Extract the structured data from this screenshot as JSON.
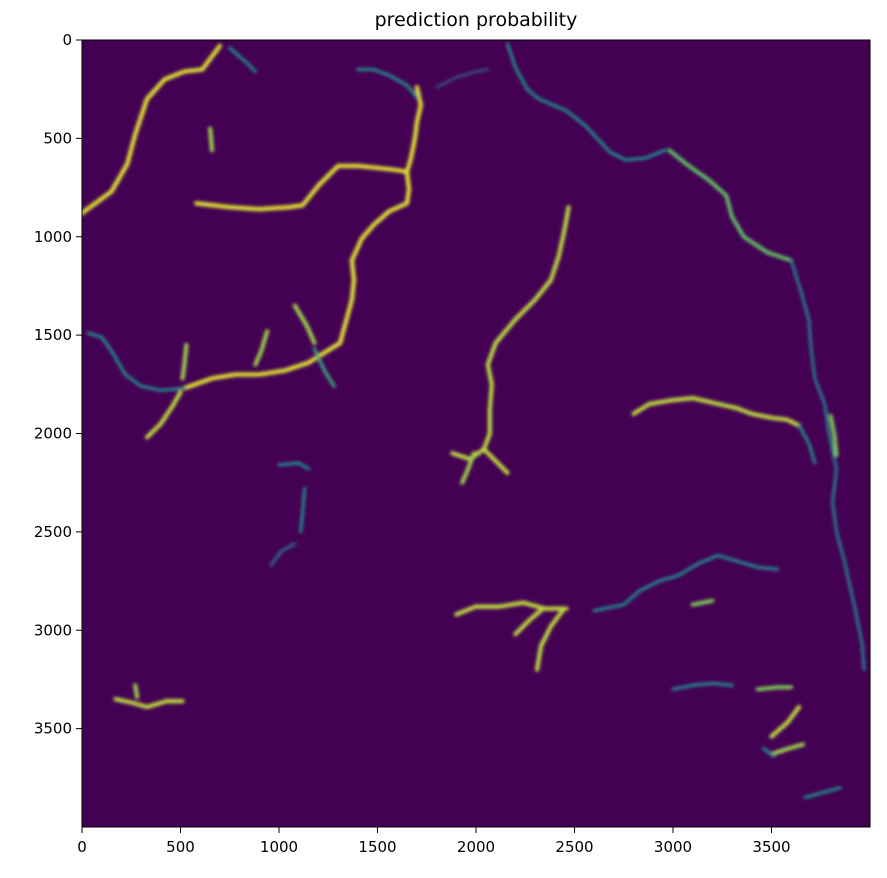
{
  "chart_data": {
    "type": "heatmap",
    "title": "prediction probability",
    "colormap": "viridis",
    "background_color": "#440154",
    "high_color": "#fde725",
    "mid_color": "#21918c",
    "xlim": [
      0,
      4000
    ],
    "ylim": [
      4000,
      0
    ],
    "x_ticks": [
      0,
      500,
      1000,
      1500,
      2000,
      2500,
      3000,
      3500
    ],
    "y_ticks": [
      0,
      500,
      1000,
      1500,
      2000,
      2500,
      3000,
      3500
    ],
    "xlabel": "",
    "ylabel": "",
    "grid": false,
    "features": [
      {
        "id": "r1",
        "prob": 0.95,
        "pts": [
          [
            0,
            880
          ],
          [
            150,
            770
          ],
          [
            230,
            630
          ],
          [
            270,
            480
          ],
          [
            330,
            300
          ],
          [
            420,
            200
          ],
          [
            520,
            160
          ],
          [
            610,
            150
          ],
          [
            700,
            30
          ]
        ]
      },
      {
        "id": "r2",
        "prob": 0.95,
        "pts": [
          [
            1650,
            670
          ],
          [
            1590,
            660
          ],
          [
            1500,
            650
          ],
          [
            1400,
            640
          ],
          [
            1300,
            640
          ],
          [
            1200,
            740
          ],
          [
            1120,
            840
          ],
          [
            1050,
            850
          ],
          [
            900,
            860
          ],
          [
            750,
            850
          ],
          [
            580,
            830
          ]
        ]
      },
      {
        "id": "r3",
        "prob": 0.95,
        "pts": [
          [
            1650,
            670
          ],
          [
            1670,
            600
          ],
          [
            1690,
            500
          ],
          [
            1700,
            420
          ],
          [
            1720,
            330
          ],
          [
            1700,
            240
          ]
        ]
      },
      {
        "id": "r4",
        "prob": 0.95,
        "pts": [
          [
            1650,
            670
          ],
          [
            1660,
            760
          ],
          [
            1650,
            830
          ],
          [
            1560,
            870
          ],
          [
            1480,
            940
          ],
          [
            1420,
            1010
          ],
          [
            1370,
            1120
          ],
          [
            1380,
            1220
          ],
          [
            1370,
            1320
          ],
          [
            1340,
            1430
          ],
          [
            1310,
            1540
          ],
          [
            1230,
            1590
          ],
          [
            1150,
            1640
          ],
          [
            1030,
            1680
          ],
          [
            900,
            1700
          ],
          [
            780,
            1700
          ],
          [
            660,
            1720
          ],
          [
            520,
            1770
          ]
        ]
      },
      {
        "id": "r5",
        "prob": 0.5,
        "pts": [
          [
            520,
            1770
          ],
          [
            400,
            1780
          ],
          [
            300,
            1760
          ],
          [
            220,
            1700
          ],
          [
            150,
            1580
          ],
          [
            100,
            1510
          ],
          [
            30,
            1490
          ]
        ]
      },
      {
        "id": "r6",
        "prob": 0.9,
        "pts": [
          [
            500,
            1790
          ],
          [
            460,
            1860
          ],
          [
            400,
            1950
          ],
          [
            330,
            2020
          ]
        ]
      },
      {
        "id": "r7",
        "prob": 0.85,
        "pts": [
          [
            530,
            1550
          ],
          [
            520,
            1650
          ],
          [
            510,
            1720
          ]
        ]
      },
      {
        "id": "r8",
        "prob": 0.85,
        "pts": [
          [
            940,
            1480
          ],
          [
            910,
            1580
          ],
          [
            880,
            1650
          ]
        ]
      },
      {
        "id": "r9",
        "prob": 0.85,
        "pts": [
          [
            1080,
            1350
          ],
          [
            1140,
            1450
          ],
          [
            1180,
            1540
          ]
        ]
      },
      {
        "id": "r10",
        "prob": 0.6,
        "pts": [
          [
            1180,
            1570
          ],
          [
            1230,
            1680
          ],
          [
            1280,
            1760
          ]
        ]
      },
      {
        "id": "r11",
        "prob": 0.85,
        "pts": [
          [
            650,
            450
          ],
          [
            660,
            560
          ]
        ]
      },
      {
        "id": "r12",
        "prob": 0.5,
        "pts": [
          [
            750,
            40
          ],
          [
            840,
            120
          ],
          [
            880,
            160
          ]
        ]
      },
      {
        "id": "r13",
        "prob": 0.9,
        "pts": [
          [
            2470,
            850
          ],
          [
            2450,
            960
          ],
          [
            2420,
            1100
          ],
          [
            2380,
            1220
          ],
          [
            2300,
            1320
          ],
          [
            2200,
            1420
          ],
          [
            2100,
            1540
          ],
          [
            2060,
            1650
          ],
          [
            2080,
            1750
          ],
          [
            2070,
            1880
          ],
          [
            2070,
            2000
          ],
          [
            2040,
            2080
          ],
          [
            1970,
            2130
          ],
          [
            1880,
            2100
          ]
        ]
      },
      {
        "id": "r14",
        "prob": 0.9,
        "pts": [
          [
            2040,
            2080
          ],
          [
            2100,
            2140
          ],
          [
            2160,
            2200
          ]
        ]
      },
      {
        "id": "r15",
        "prob": 0.85,
        "pts": [
          [
            1990,
            2100
          ],
          [
            1960,
            2180
          ],
          [
            1930,
            2250
          ]
        ]
      },
      {
        "id": "r16",
        "prob": 0.5,
        "pts": [
          [
            2160,
            20
          ],
          [
            2200,
            140
          ],
          [
            2260,
            250
          ],
          [
            2320,
            300
          ],
          [
            2460,
            360
          ],
          [
            2560,
            440
          ],
          [
            2680,
            570
          ],
          [
            2760,
            610
          ],
          [
            2860,
            600
          ],
          [
            2960,
            560
          ]
        ]
      },
      {
        "id": "r17",
        "prob": 0.75,
        "pts": [
          [
            2980,
            560
          ],
          [
            3080,
            640
          ],
          [
            3180,
            710
          ],
          [
            3270,
            790
          ],
          [
            3300,
            900
          ],
          [
            3360,
            1000
          ],
          [
            3480,
            1080
          ],
          [
            3600,
            1120
          ]
        ]
      },
      {
        "id": "r18",
        "prob": 0.45,
        "pts": [
          [
            3600,
            1120
          ],
          [
            3650,
            1280
          ],
          [
            3690,
            1420
          ],
          [
            3700,
            1560
          ],
          [
            3720,
            1720
          ],
          [
            3770,
            1850
          ],
          [
            3790,
            1990
          ],
          [
            3830,
            2180
          ],
          [
            3810,
            2350
          ],
          [
            3830,
            2500
          ],
          [
            3870,
            2650
          ],
          [
            3920,
            2870
          ],
          [
            3960,
            3070
          ],
          [
            3970,
            3200
          ]
        ]
      },
      {
        "id": "r19",
        "prob": 0.9,
        "pts": [
          [
            2800,
            1900
          ],
          [
            2880,
            1850
          ],
          [
            3000,
            1830
          ],
          [
            3100,
            1820
          ],
          [
            3230,
            1850
          ],
          [
            3320,
            1870
          ],
          [
            3400,
            1900
          ],
          [
            3500,
            1920
          ],
          [
            3580,
            1930
          ],
          [
            3640,
            1960
          ]
        ]
      },
      {
        "id": "r20",
        "prob": 0.5,
        "pts": [
          [
            3640,
            1960
          ],
          [
            3690,
            2050
          ],
          [
            3720,
            2150
          ]
        ]
      },
      {
        "id": "r21",
        "prob": 0.8,
        "pts": [
          [
            3800,
            1910
          ],
          [
            3820,
            2010
          ],
          [
            3830,
            2110
          ]
        ]
      },
      {
        "id": "r22",
        "prob": 0.5,
        "pts": [
          [
            2600,
            2900
          ],
          [
            2750,
            2870
          ],
          [
            2830,
            2800
          ],
          [
            2930,
            2750
          ],
          [
            3030,
            2720
          ],
          [
            3130,
            2660
          ],
          [
            3230,
            2620
          ],
          [
            3330,
            2650
          ],
          [
            3430,
            2680
          ],
          [
            3530,
            2690
          ]
        ]
      },
      {
        "id": "r23",
        "prob": 0.9,
        "pts": [
          [
            1900,
            2920
          ],
          [
            2000,
            2880
          ],
          [
            2120,
            2880
          ],
          [
            2240,
            2860
          ],
          [
            2350,
            2890
          ],
          [
            2460,
            2890
          ]
        ]
      },
      {
        "id": "r24",
        "prob": 0.9,
        "pts": [
          [
            2440,
            2900
          ],
          [
            2380,
            2980
          ],
          [
            2330,
            3080
          ],
          [
            2310,
            3200
          ]
        ]
      },
      {
        "id": "r25",
        "prob": 0.9,
        "pts": [
          [
            2340,
            2890
          ],
          [
            2270,
            2950
          ],
          [
            2200,
            3020
          ]
        ]
      },
      {
        "id": "r26",
        "prob": 0.5,
        "pts": [
          [
            1150,
            2180
          ],
          [
            1100,
            2150
          ],
          [
            1000,
            2160
          ]
        ]
      },
      {
        "id": "r27",
        "prob": 0.5,
        "pts": [
          [
            1130,
            2280
          ],
          [
            1120,
            2400
          ],
          [
            1110,
            2500
          ]
        ]
      },
      {
        "id": "r28",
        "prob": 0.4,
        "pts": [
          [
            960,
            2670
          ],
          [
            1010,
            2600
          ],
          [
            1080,
            2560
          ]
        ]
      },
      {
        "id": "r29",
        "prob": 0.9,
        "pts": [
          [
            170,
            3350
          ],
          [
            260,
            3370
          ],
          [
            330,
            3390
          ],
          [
            430,
            3360
          ],
          [
            510,
            3360
          ]
        ]
      },
      {
        "id": "r30",
        "prob": 0.85,
        "pts": [
          [
            270,
            3280
          ],
          [
            280,
            3340
          ]
        ]
      },
      {
        "id": "r31",
        "prob": 0.5,
        "pts": [
          [
            3000,
            3300
          ],
          [
            3100,
            3280
          ],
          [
            3200,
            3270
          ],
          [
            3300,
            3280
          ]
        ]
      },
      {
        "id": "r32",
        "prob": 0.8,
        "pts": [
          [
            3430,
            3300
          ],
          [
            3530,
            3290
          ],
          [
            3600,
            3290
          ]
        ]
      },
      {
        "id": "r33",
        "prob": 0.9,
        "pts": [
          [
            3500,
            3540
          ],
          [
            3580,
            3470
          ],
          [
            3640,
            3390
          ]
        ]
      },
      {
        "id": "r34",
        "prob": 0.85,
        "pts": [
          [
            3500,
            3630
          ],
          [
            3590,
            3600
          ],
          [
            3660,
            3580
          ]
        ]
      },
      {
        "id": "r35",
        "prob": 0.5,
        "pts": [
          [
            3670,
            3850
          ],
          [
            3780,
            3820
          ],
          [
            3850,
            3800
          ]
        ]
      },
      {
        "id": "r36",
        "prob": 0.5,
        "pts": [
          [
            1700,
            290
          ],
          [
            1650,
            230
          ],
          [
            1560,
            180
          ],
          [
            1480,
            150
          ],
          [
            1400,
            150
          ]
        ]
      },
      {
        "id": "r37",
        "prob": 0.3,
        "pts": [
          [
            1800,
            240
          ],
          [
            1900,
            190
          ],
          [
            2000,
            160
          ],
          [
            2060,
            150
          ]
        ]
      },
      {
        "id": "r38",
        "prob": 0.8,
        "pts": [
          [
            3100,
            2870
          ],
          [
            3200,
            2850
          ]
        ]
      },
      {
        "id": "r39",
        "prob": 0.5,
        "pts": [
          [
            3460,
            3600
          ],
          [
            3510,
            3640
          ]
        ]
      }
    ]
  }
}
